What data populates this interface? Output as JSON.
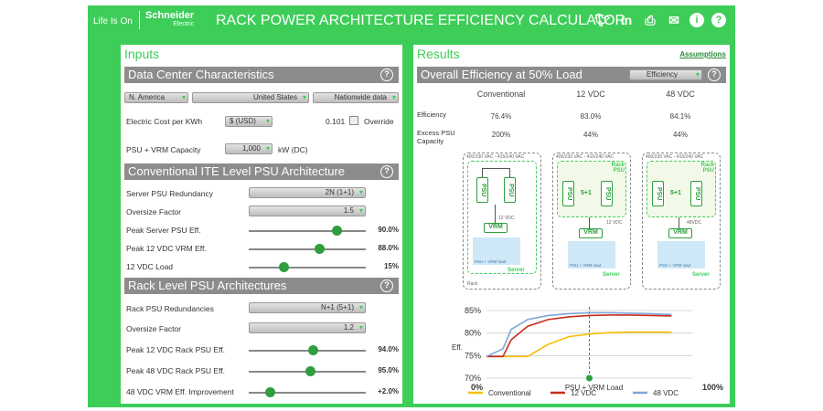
{
  "header": {
    "life_is_on": "Life Is On",
    "brand": "Schneider",
    "brand_sub": "Electric",
    "title": "RACK POWER ARCHITECTURE EFFICIENCY CALCULATOR",
    "icons": [
      "twitter-icon",
      "linkedin-icon",
      "print-icon",
      "mail-icon",
      "info-icon",
      "help-icon"
    ]
  },
  "inputs": {
    "title": "Inputs",
    "dc": {
      "header": "Data Center Characteristics",
      "region": "N. America",
      "country": "United States",
      "data_src": "Nationwide data",
      "cost_label": "Electric Cost per KWh",
      "currency": "$ (USD)",
      "cost_value": "0.101",
      "override_label": "Override",
      "capacity_label": "PSU + VRM Capacity",
      "capacity_value": "1,000",
      "capacity_unit": "kW (DC)"
    },
    "conv": {
      "header": "Conventional ITE Level PSU Architecture",
      "redund_label": "Server PSU Redundancy",
      "redund_value": "2N (1+1)",
      "oversize_label": "Oversize Factor",
      "oversize_value": "1.5",
      "psu_eff_label": "Peak Server PSU Eff.",
      "psu_eff_value": "90.0%",
      "psu_eff_level": 0.75,
      "vrm_eff_label": "Peak 12 VDC VRM Eff.",
      "vrm_eff_value": "88.0%",
      "vrm_eff_level": 0.6,
      "load_label": "12 VDC Load",
      "load_value": "15%",
      "load_level": 0.3
    },
    "rack": {
      "header": "Rack Level PSU Architectures",
      "redund_label": "Rack PSU Redundancies",
      "redund_value": "N+1 (5+1)",
      "oversize_label": "Oversize Factor",
      "oversize_value": "1.2",
      "p12_label": "Peak 12 VDC Rack PSU Eff.",
      "p12_value": "94.0%",
      "p12_level": 0.55,
      "p48_label": "Peak 48 VDC Rack PSU Eff.",
      "p48_value": "95.0%",
      "p48_level": 0.52,
      "vrm_label": "48 VDC VRM Eff. Improvement",
      "vrm_value": "+2.0%",
      "vrm_level": 0.18
    }
  },
  "results": {
    "title": "Results",
    "assumptions": "Assumptions",
    "header": "Overall Efficiency at 50% Load",
    "mode": "Efficiency",
    "columns": [
      "Conventional",
      "12 VDC",
      "48 VDC"
    ],
    "eff_label": "Efficiency",
    "eff_values": [
      "76.4%",
      "83.0%",
      "84.1%"
    ],
    "excess_label": "Excess PSU Capacity",
    "excess_values": [
      "200%",
      "44%",
      "44%"
    ],
    "diagram": {
      "voltage": "400/230 VAC - 415/240 VAC",
      "psu": "PSU",
      "five_one": "5+1",
      "vrm": "VRM",
      "v12": "12 VDC",
      "v48": "48VDC",
      "load_text": "PSU + VRM load",
      "server": "Server",
      "rack": "Rack",
      "rack_psu": "Rack PSU"
    }
  },
  "chart_data": {
    "type": "line",
    "ylabel": "Eff.",
    "xlabel": "PSU + VRM Load",
    "x_ticks": [
      "0%",
      "100%"
    ],
    "y_ticks": [
      "70%",
      "75%",
      "80%",
      "85%"
    ],
    "ylim": [
      70,
      85
    ],
    "marker_x": 0.5,
    "x": [
      0,
      0.08,
      0.12,
      0.2,
      0.3,
      0.4,
      0.5,
      0.6,
      0.7,
      0.8,
      0.9
    ],
    "series": [
      {
        "name": "Conventional",
        "color": "#f5c000",
        "values": [
          74.8,
          74.8,
          74.8,
          74.8,
          77.5,
          79.2,
          79.8,
          80.1,
          80.2,
          80.2,
          80.2
        ]
      },
      {
        "name": "12 VDC",
        "color": "#cc2a1a",
        "values": [
          74.8,
          74.8,
          78.5,
          81.5,
          83.0,
          83.6,
          83.9,
          84.0,
          84.0,
          83.9,
          83.8
        ]
      },
      {
        "name": "48 VDC",
        "color": "#7fa5d8",
        "values": [
          74.8,
          76.5,
          80.8,
          83.0,
          83.9,
          84.3,
          84.5,
          84.5,
          84.4,
          84.3,
          84.1
        ]
      }
    ]
  }
}
